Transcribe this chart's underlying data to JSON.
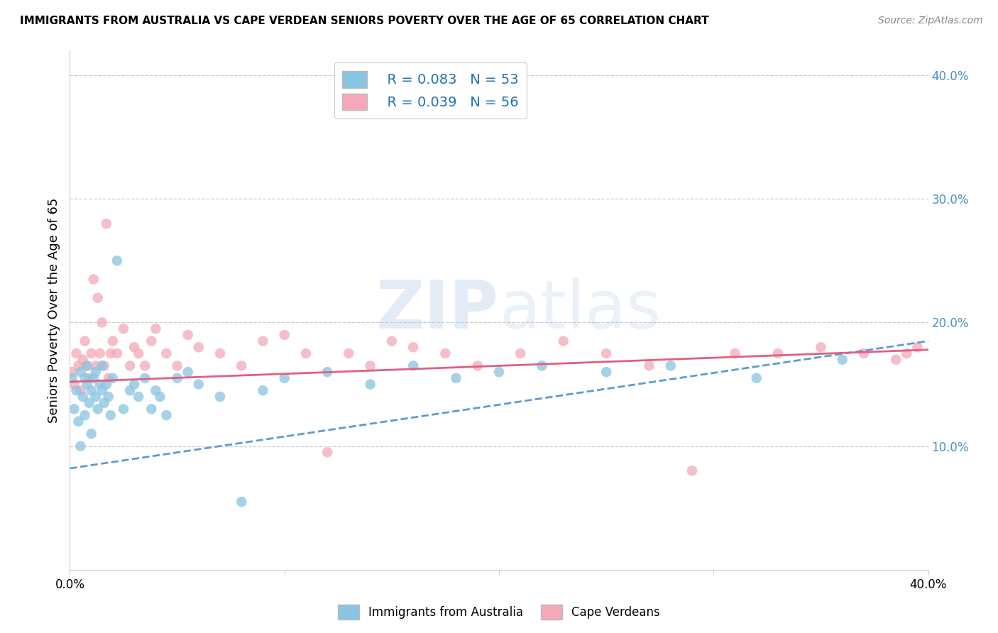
{
  "title": "IMMIGRANTS FROM AUSTRALIA VS CAPE VERDEAN SENIORS POVERTY OVER THE AGE OF 65 CORRELATION CHART",
  "source": "Source: ZipAtlas.com",
  "ylabel": "Seniors Poverty Over the Age of 65",
  "xlim": [
    0.0,
    0.4
  ],
  "ylim": [
    0.0,
    0.42
  ],
  "yticks": [
    0.1,
    0.2,
    0.3,
    0.4
  ],
  "ytick_labels": [
    "10.0%",
    "20.0%",
    "30.0%",
    "40.0%"
  ],
  "xticks": [
    0.0,
    0.1,
    0.2,
    0.3,
    0.4
  ],
  "xtick_labels": [
    "0.0%",
    "",
    "",
    "",
    "40.0%"
  ],
  "legend_r1": "R = 0.083",
  "legend_n1": "N = 53",
  "legend_r2": "R = 0.039",
  "legend_n2": "N = 56",
  "series1_color": "#89c4e1",
  "series2_color": "#f4a8b8",
  "trend1_color": "#5b9bd5",
  "trend2_color": "#e06080",
  "watermark": "ZIPatlas",
  "background_color": "#ffffff",
  "grid_color": "#cccccc",
  "australia_x": [
    0.001,
    0.002,
    0.003,
    0.004,
    0.005,
    0.005,
    0.006,
    0.007,
    0.007,
    0.008,
    0.008,
    0.009,
    0.01,
    0.01,
    0.011,
    0.012,
    0.012,
    0.013,
    0.014,
    0.015,
    0.015,
    0.016,
    0.017,
    0.018,
    0.019,
    0.02,
    0.022,
    0.025,
    0.028,
    0.03,
    0.032,
    0.035,
    0.038,
    0.04,
    0.042,
    0.045,
    0.05,
    0.055,
    0.06,
    0.07,
    0.08,
    0.09,
    0.1,
    0.12,
    0.14,
    0.16,
    0.18,
    0.2,
    0.22,
    0.25,
    0.28,
    0.32,
    0.36
  ],
  "australia_y": [
    0.155,
    0.13,
    0.145,
    0.12,
    0.16,
    0.1,
    0.14,
    0.155,
    0.125,
    0.15,
    0.165,
    0.135,
    0.145,
    0.11,
    0.155,
    0.14,
    0.16,
    0.13,
    0.15,
    0.145,
    0.165,
    0.135,
    0.15,
    0.14,
    0.125,
    0.155,
    0.25,
    0.13,
    0.145,
    0.15,
    0.14,
    0.155,
    0.13,
    0.145,
    0.14,
    0.125,
    0.155,
    0.16,
    0.15,
    0.14,
    0.055,
    0.145,
    0.155,
    0.16,
    0.15,
    0.165,
    0.155,
    0.16,
    0.165,
    0.16,
    0.165,
    0.155,
    0.17
  ],
  "cape_verdean_x": [
    0.001,
    0.002,
    0.003,
    0.004,
    0.005,
    0.006,
    0.007,
    0.008,
    0.009,
    0.01,
    0.011,
    0.012,
    0.013,
    0.014,
    0.015,
    0.016,
    0.017,
    0.018,
    0.019,
    0.02,
    0.022,
    0.025,
    0.028,
    0.03,
    0.032,
    0.035,
    0.038,
    0.04,
    0.045,
    0.05,
    0.055,
    0.06,
    0.07,
    0.08,
    0.09,
    0.1,
    0.11,
    0.12,
    0.13,
    0.14,
    0.15,
    0.16,
    0.175,
    0.19,
    0.21,
    0.23,
    0.25,
    0.27,
    0.29,
    0.31,
    0.33,
    0.35,
    0.37,
    0.385,
    0.39,
    0.395
  ],
  "cape_verdean_y": [
    0.16,
    0.15,
    0.175,
    0.165,
    0.145,
    0.17,
    0.185,
    0.165,
    0.155,
    0.175,
    0.235,
    0.165,
    0.22,
    0.175,
    0.2,
    0.165,
    0.28,
    0.155,
    0.175,
    0.185,
    0.175,
    0.195,
    0.165,
    0.18,
    0.175,
    0.165,
    0.185,
    0.195,
    0.175,
    0.165,
    0.19,
    0.18,
    0.175,
    0.165,
    0.185,
    0.19,
    0.175,
    0.095,
    0.175,
    0.165,
    0.185,
    0.18,
    0.175,
    0.165,
    0.175,
    0.185,
    0.175,
    0.165,
    0.08,
    0.175,
    0.175,
    0.18,
    0.175,
    0.17,
    0.175,
    0.18
  ]
}
